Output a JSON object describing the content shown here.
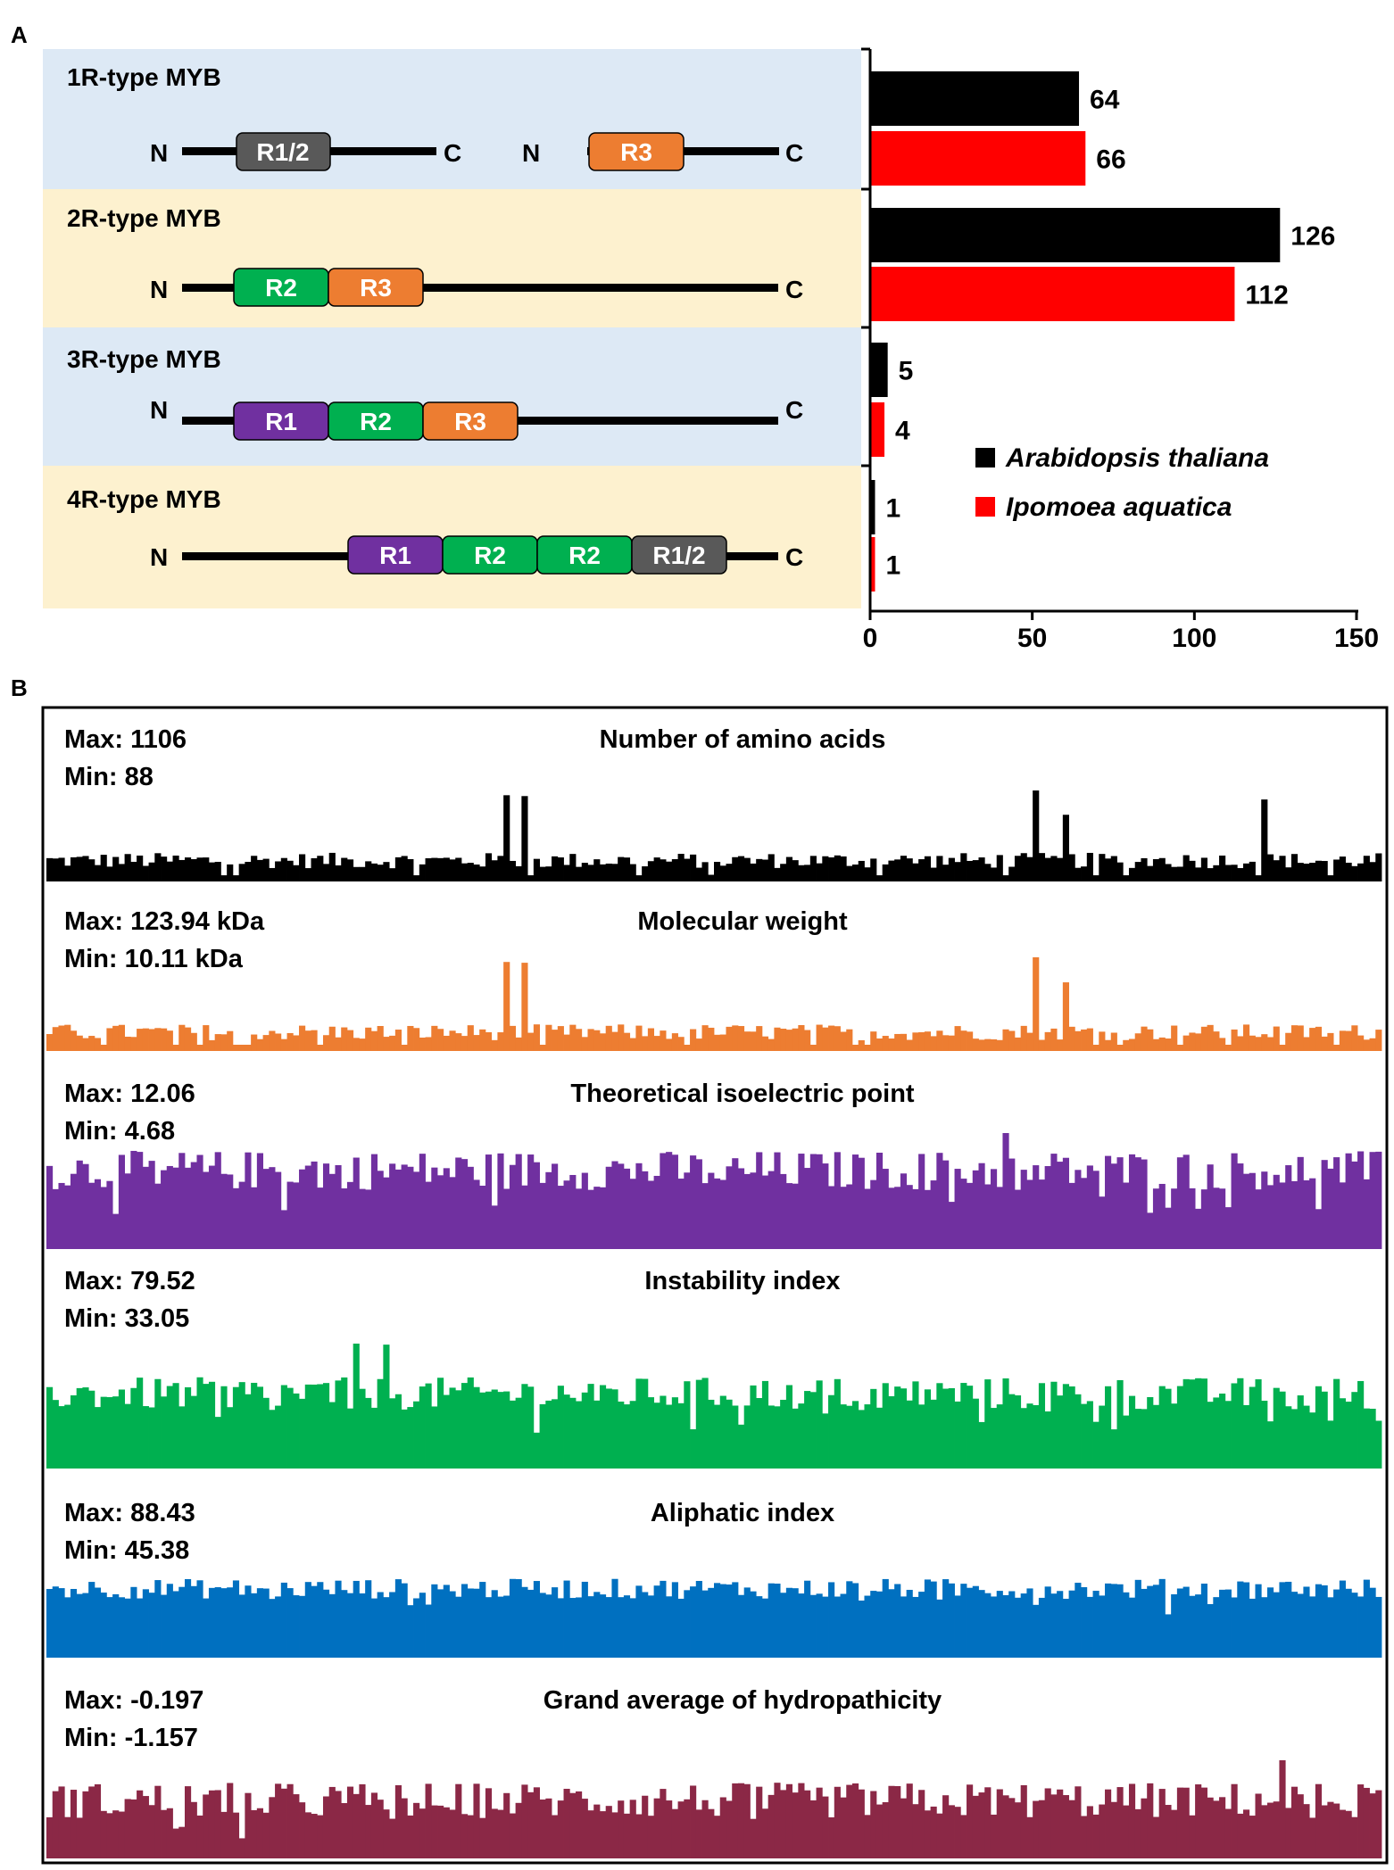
{
  "panel_labels": {
    "a": "A",
    "b": "B"
  },
  "colors": {
    "arabidopsis": "#000000",
    "ipomoea": "#ff0000",
    "bg_blue": "#dde9f5",
    "bg_yellow": "#fdf1cf",
    "r1": "#7030a0",
    "r2": "#00b050",
    "r3": "#ed7d31",
    "r12": "#595959"
  },
  "domain_diagram": {
    "types": [
      {
        "label": "1R-type MYB",
        "terminal_n": "N",
        "terminal_c": "C",
        "domains_a": [
          "R1/2"
        ],
        "domains_b": [
          "R3"
        ]
      },
      {
        "label": "2R-type MYB",
        "terminal_n": "N",
        "terminal_c": "C",
        "domains": [
          "R2",
          "R3"
        ]
      },
      {
        "label": "3R-type MYB",
        "terminal_n": "N",
        "terminal_c": "C",
        "domains": [
          "R1",
          "R2",
          "R3"
        ]
      },
      {
        "label": "4R-type MYB",
        "terminal_n": "N",
        "terminal_c": "C",
        "domains": [
          "R1",
          "R2",
          "R2",
          "R1/2"
        ]
      }
    ]
  },
  "chart_data": [
    {
      "type": "bar",
      "orientation": "horizontal",
      "categories": [
        "1R-type MYB",
        "2R-type MYB",
        "3R-type MYB",
        "4R-type MYB"
      ],
      "series": [
        {
          "name": "Arabidopsis thaliana",
          "values": [
            64,
            126,
            5,
            1
          ]
        },
        {
          "name": "Ipomoea aquatica",
          "values": [
            66,
            112,
            4,
            1
          ]
        }
      ],
      "xlim": [
        0,
        150
      ],
      "xticks": [
        "0",
        "50",
        "100",
        "150"
      ],
      "legend": [
        "Arabidopsis thaliana",
        "Ipomoea aquatica"
      ],
      "legend_position": "lower-right"
    },
    {
      "type": "bar",
      "title": "Number of amino acids",
      "max_label": "Max: 1106",
      "min_label": "Min: 88",
      "max": 1106,
      "min": 88,
      "count": 222,
      "color": "#000000",
      "spikes": [
        [
          76,
          1050
        ],
        [
          79,
          1040
        ],
        [
          164,
          1106
        ],
        [
          169,
          820
        ],
        [
          202,
          1000
        ]
      ]
    },
    {
      "type": "bar",
      "title": "Molecular weight",
      "max_label": "Max: 123.94 kDa",
      "min_label": "Min: 10.11 kDa",
      "max": 123.94,
      "min": 10.11,
      "count": 222,
      "color": "#ed7d31",
      "spikes": [
        [
          76,
          118
        ],
        [
          79,
          117
        ],
        [
          164,
          123.94
        ],
        [
          169,
          92
        ]
      ]
    },
    {
      "type": "bar",
      "title": "Theoretical isoelectric point",
      "max_label": "Max: 12.06",
      "min_label": "Min: 4.68",
      "max": 12.06,
      "min": 4.68,
      "count": 222,
      "color": "#7030a0",
      "spikes": [
        [
          159,
          12.06
        ]
      ]
    },
    {
      "type": "bar",
      "title": "Instability index",
      "max_label": "Max: 79.52",
      "min_label": "Min: 33.05",
      "max": 79.52,
      "min": 33.05,
      "count": 222,
      "color": "#00b050",
      "spikes": [
        [
          51,
          79.52
        ],
        [
          56,
          79.0
        ]
      ]
    },
    {
      "type": "bar",
      "title": "Aliphatic index",
      "max_label": "Max: 88.43",
      "min_label": "Min: 45.38",
      "max": 88.43,
      "min": 45.38,
      "count": 222,
      "color": "#0070c0",
      "spikes": []
    },
    {
      "type": "bar",
      "title": "Grand average of hydropathicity",
      "max_label": "Max: -0.197",
      "min_label": "Min: -1.157",
      "max": -0.197,
      "min": -1.157,
      "count": 222,
      "color": "#8b2846",
      "spikes": [
        [
          205,
          -0.197
        ]
      ]
    }
  ]
}
